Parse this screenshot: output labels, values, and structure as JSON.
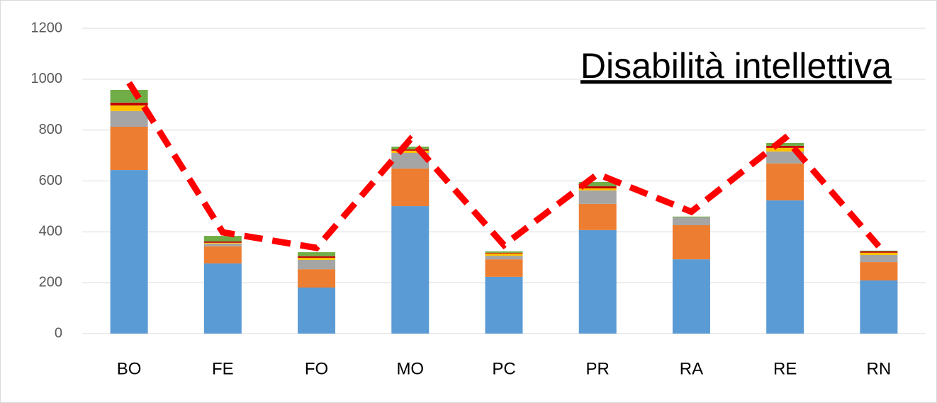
{
  "chart_data": {
    "type": "stacked-bar-line",
    "title": "Disabilità intellettiva",
    "categories": [
      "BO",
      "FE",
      "FO",
      "MO",
      "PC",
      "PR",
      "RA",
      "RE",
      "RN"
    ],
    "series": [
      {
        "color": "#5b9bd5",
        "values": [
          643,
          276,
          181,
          501,
          223,
          407,
          292,
          524,
          209
        ]
      },
      {
        "color": "#ed7d31",
        "values": [
          170,
          67,
          72,
          148,
          69,
          103,
          134,
          145,
          72
        ]
      },
      {
        "color": "#a5a5a5",
        "values": [
          62,
          11,
          37,
          61,
          14,
          53,
          31,
          47,
          28
        ]
      },
      {
        "color": "#ffc000",
        "values": [
          22,
          3,
          8,
          9,
          9,
          8,
          0,
          14,
          9
        ]
      },
      {
        "color": "#c00000",
        "values": [
          11,
          5,
          6,
          5,
          3,
          8,
          0,
          8,
          5
        ]
      },
      {
        "color": "#70ad47",
        "values": [
          50,
          22,
          16,
          11,
          5,
          17,
          3,
          11,
          3
        ]
      },
      {
        "type": "line",
        "color": "#ff0000",
        "values": [
          986,
          398,
          337,
          763,
          348,
          627,
          479,
          769,
          343
        ]
      }
    ],
    "ylim": [
      0,
      1200
    ],
    "yticks": [
      0,
      200,
      400,
      600,
      800,
      1000,
      1200
    ],
    "grid": true
  }
}
